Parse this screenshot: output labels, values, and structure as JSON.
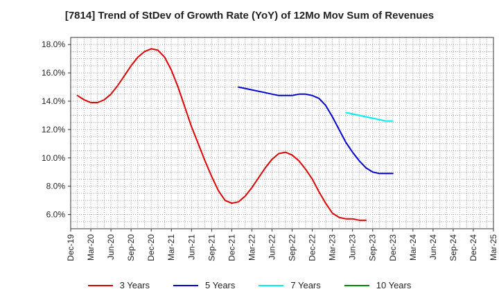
{
  "chart_data": {
    "type": "line",
    "title": "[7814]  Trend of StDev of Growth Rate (YoY) of 12Mo Mov Sum of Revenues",
    "xlabel": "",
    "ylabel": "",
    "ylim": [
      5.0,
      18.5
    ],
    "yticks": [
      6.0,
      8.0,
      10.0,
      12.0,
      14.0,
      16.0,
      18.0
    ],
    "ytick_labels": [
      "6.0%",
      "8.0%",
      "10.0%",
      "12.0%",
      "14.0%",
      "16.0%",
      "18.0%"
    ],
    "xtick_labels": [
      "Dec-19",
      "Mar-20",
      "Jun-20",
      "Sep-20",
      "Dec-20",
      "Mar-21",
      "Jun-21",
      "Sep-21",
      "Dec-21",
      "Mar-22",
      "Jun-22",
      "Sep-22",
      "Dec-22",
      "Mar-23",
      "Jun-23",
      "Sep-23",
      "Dec-23",
      "Mar-24",
      "Jun-24",
      "Sep-24",
      "Dec-24",
      "Mar-25"
    ],
    "grid": true,
    "legend_position": "bottom",
    "series": [
      {
        "name": "3 Years",
        "color": "#dd0000",
        "start_index": 1,
        "values": [
          14.4,
          14.1,
          13.9,
          13.9,
          14.1,
          14.5,
          15.1,
          15.8,
          16.5,
          17.1,
          17.5,
          17.7,
          17.6,
          17.1,
          16.2,
          15.0,
          13.6,
          12.2,
          11.0,
          9.8,
          8.7,
          7.7,
          7.0,
          6.8,
          6.9,
          7.3,
          7.9,
          8.6,
          9.3,
          9.9,
          10.3,
          10.4,
          10.2,
          9.8,
          9.2,
          8.5,
          7.6,
          6.8,
          6.1,
          5.8,
          5.7,
          5.7,
          5.6,
          5.6
        ]
      },
      {
        "name": "5 Years",
        "color": "#0000cc",
        "start_index": 25,
        "values": [
          15.0,
          14.9,
          14.8,
          14.7,
          14.6,
          14.5,
          14.4,
          14.4,
          14.4,
          14.5,
          14.5,
          14.4,
          14.2,
          13.7,
          12.9,
          12.0,
          11.1,
          10.4,
          9.8,
          9.3,
          9.0,
          8.9,
          8.9,
          8.9
        ]
      },
      {
        "name": "7 Years",
        "color": "#00eeee",
        "start_index": 41,
        "values": [
          13.2,
          13.1,
          13.0,
          12.9,
          12.8,
          12.7,
          12.6,
          12.6
        ]
      },
      {
        "name": "10 Years",
        "color": "#008800",
        "start_index": 0,
        "values": []
      }
    ]
  }
}
